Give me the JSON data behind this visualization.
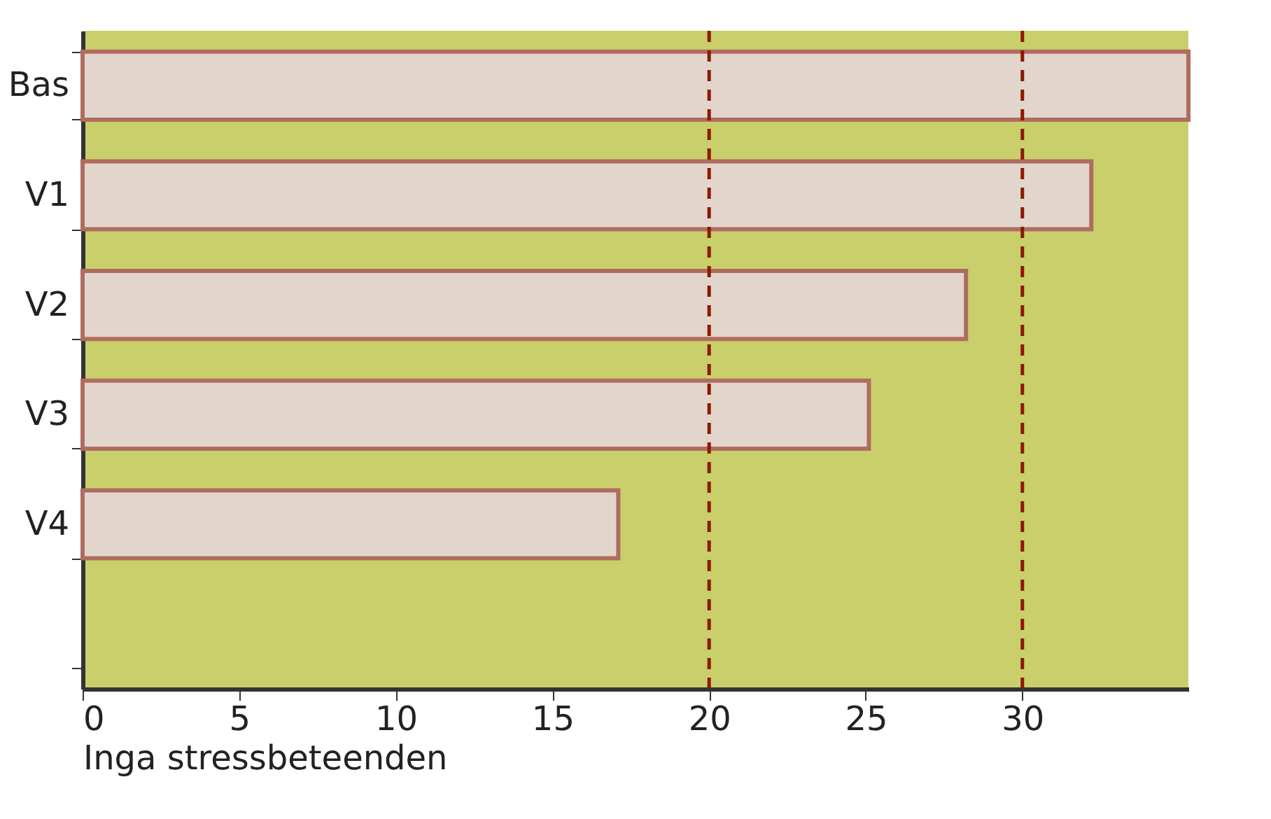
{
  "chart_data": {
    "type": "bar",
    "orientation": "horizontal",
    "xlabel": "Inga stressbeteenden",
    "categories": [
      "Bas",
      "V1",
      "V2",
      "V3",
      "V4",
      null
    ],
    "values": [
      35.3,
      32.2,
      28.2,
      25.1,
      17.1,
      null
    ],
    "color": "#e2d6cc",
    "xlim": [
      0,
      35.3
    ],
    "xticks": [
      0,
      5,
      10,
      15,
      20,
      25,
      30
    ],
    "ref_lines": [
      {
        "axis": "x",
        "value": 20,
        "color": "#8b1a00",
        "line_style": "dashed"
      },
      {
        "axis": "x",
        "value": 30,
        "color": "#8b1a00",
        "line_style": "dashed"
      }
    ],
    "grid": false
  }
}
